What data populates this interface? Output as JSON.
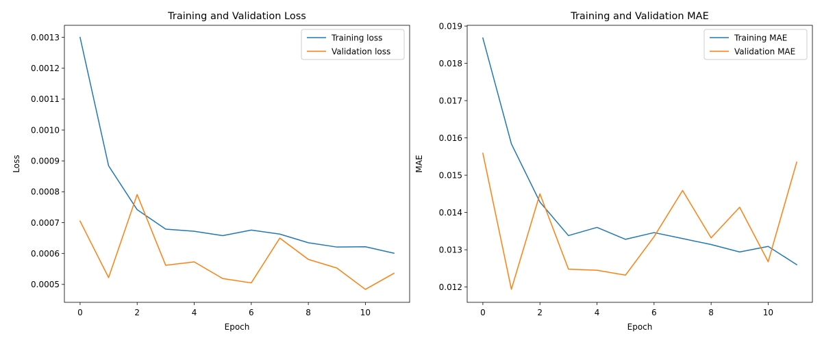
{
  "chart_data": [
    {
      "type": "line",
      "title": "Training and Validation Loss",
      "xlabel": "Epoch",
      "ylabel": "Loss",
      "x": [
        0,
        1,
        2,
        3,
        4,
        5,
        6,
        7,
        8,
        9,
        10,
        11
      ],
      "xlim": [
        -0.55,
        11.55
      ],
      "ylim": [
        0.000442,
        0.001339
      ],
      "xticks": [
        0,
        2,
        4,
        6,
        8,
        10
      ],
      "xtick_labels": [
        "0",
        "2",
        "4",
        "6",
        "8",
        "10"
      ],
      "yticks": [
        0.0005,
        0.0006,
        0.0007,
        0.0008,
        0.0009,
        0.001,
        0.0011,
        0.0012,
        0.0013
      ],
      "ytick_labels": [
        "0.0005",
        "0.0006",
        "0.0007",
        "0.0008",
        "0.0009",
        "0.0010",
        "0.0011",
        "0.0012",
        "0.0013"
      ],
      "grid": false,
      "legend": "top-right",
      "series": [
        {
          "name": "Training loss",
          "color": "#1f77b4",
          "values": [
            0.0013,
            0.000884,
            0.000742,
            0.000679,
            0.000672,
            0.000658,
            0.000676,
            0.000663,
            0.000635,
            0.000621,
            0.000622,
            0.000601
          ]
        },
        {
          "name": "Validation loss",
          "color": "#ff7f0e",
          "values": [
            0.000705,
            0.000522,
            0.000791,
            0.000562,
            0.000573,
            0.000519,
            0.000505,
            0.00065,
            0.000581,
            0.000553,
            0.000484,
            0.000536
          ]
        }
      ]
    },
    {
      "type": "line",
      "title": "Training and Validation MAE",
      "xlabel": "Epoch",
      "ylabel": "MAE",
      "x": [
        0,
        1,
        2,
        3,
        4,
        5,
        6,
        7,
        8,
        9,
        10,
        11
      ],
      "xlim": [
        -0.55,
        11.55
      ],
      "ylim": [
        0.01159,
        0.01902
      ],
      "xticks": [
        0,
        2,
        4,
        6,
        8,
        10
      ],
      "xtick_labels": [
        "0",
        "2",
        "4",
        "6",
        "8",
        "10"
      ],
      "yticks": [
        0.012,
        0.013,
        0.014,
        0.015,
        0.016,
        0.017,
        0.018,
        0.019
      ],
      "ytick_labels": [
        "0.012",
        "0.013",
        "0.014",
        "0.015",
        "0.016",
        "0.017",
        "0.018",
        "0.019"
      ],
      "grid": false,
      "legend": "top-right",
      "series": [
        {
          "name": "Training MAE",
          "color": "#1f77b4",
          "values": [
            0.01868,
            0.01584,
            0.01428,
            0.01338,
            0.0136,
            0.01328,
            0.01346,
            0.0133,
            0.01314,
            0.01294,
            0.01309,
            0.0126
          ]
        },
        {
          "name": "Validation MAE",
          "color": "#ff7f0e",
          "values": [
            0.01559,
            0.01194,
            0.0145,
            0.01248,
            0.01245,
            0.01232,
            0.01335,
            0.01459,
            0.01332,
            0.01414,
            0.01268,
            0.01535
          ]
        }
      ]
    }
  ]
}
